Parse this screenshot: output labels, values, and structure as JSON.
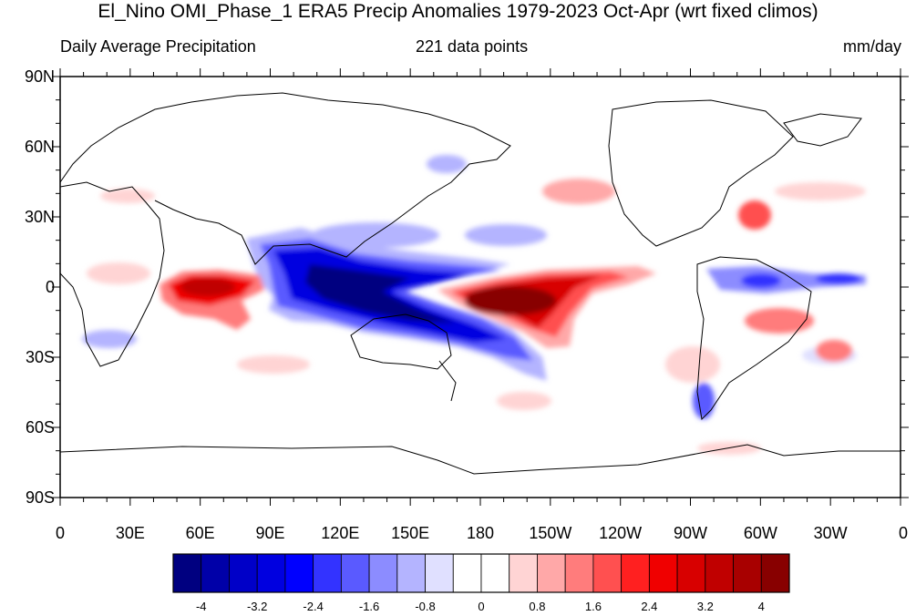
{
  "title": "El_Nino OMI_Phase_1 ERA5 Precip Anomalies 1979-2023 Oct-Apr (wrt fixed climos)",
  "subtitle_left": "Daily Average Precipitation",
  "subtitle_center": "221 data points",
  "subtitle_right": "mm/day",
  "lat_labels": [
    "90N",
    "60N",
    "30N",
    "0",
    "30S",
    "60S",
    "90S"
  ],
  "lon_labels": [
    "0",
    "30E",
    "60E",
    "90E",
    "120E",
    "150E",
    "180",
    "150W",
    "120W",
    "90W",
    "60W",
    "30W",
    "0"
  ],
  "colorbar": {
    "colors": [
      "#000080",
      "#0000a8",
      "#0000c8",
      "#0000e0",
      "#0000ff",
      "#3333ff",
      "#5a5aff",
      "#8c8cff",
      "#b4b4ff",
      "#e0e0ff",
      "#ffffff",
      "#ffffff",
      "#ffd4d4",
      "#ffa8a8",
      "#ff7c7c",
      "#ff5050",
      "#ff2020",
      "#f00000",
      "#d80000",
      "#c00000",
      "#a80000",
      "#880000"
    ],
    "labels": [
      "-4",
      "-3.2",
      "-2.4",
      "-1.6",
      "-0.8",
      "0",
      "0.8",
      "1.6",
      "2.4",
      "3.2",
      "4"
    ]
  }
}
